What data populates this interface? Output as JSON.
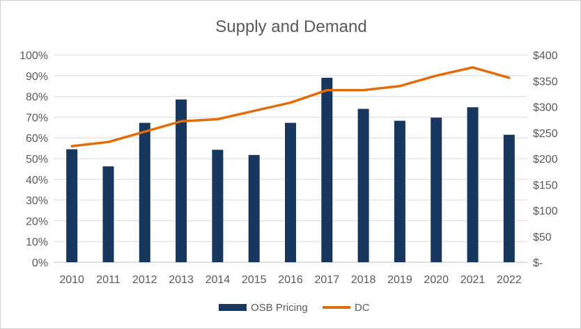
{
  "chart_data": {
    "type": "bar+line",
    "title": "Supply and Demand",
    "categories": [
      "2010",
      "2011",
      "2012",
      "2013",
      "2014",
      "2015",
      "2016",
      "2017",
      "2018",
      "2019",
      "2020",
      "2021",
      "2022"
    ],
    "series": [
      {
        "name": "OSB Pricing",
        "type": "bar",
        "axis": "right",
        "color": "#17375e",
        "values": [
          218,
          185,
          269,
          314,
          217,
          207,
          269,
          356,
          296,
          273,
          279,
          299,
          246
        ]
      },
      {
        "name": "DC",
        "type": "line",
        "axis": "left",
        "color": "#e36c0a",
        "values": [
          56,
          58,
          63,
          68,
          69,
          73,
          77,
          83,
          83,
          85,
          90,
          94,
          89
        ]
      }
    ],
    "left_axis": {
      "ylim": [
        0,
        100
      ],
      "ticks": [
        "0%",
        "10%",
        "20%",
        "30%",
        "40%",
        "50%",
        "60%",
        "70%",
        "80%",
        "90%",
        "100%"
      ]
    },
    "right_axis": {
      "ylim": [
        0,
        400
      ],
      "ticks": [
        "$-",
        "$50",
        "$100",
        "$150",
        "$200",
        "$250",
        "$300",
        "$350",
        "$400"
      ]
    },
    "grid": true,
    "legend": "bottom"
  }
}
